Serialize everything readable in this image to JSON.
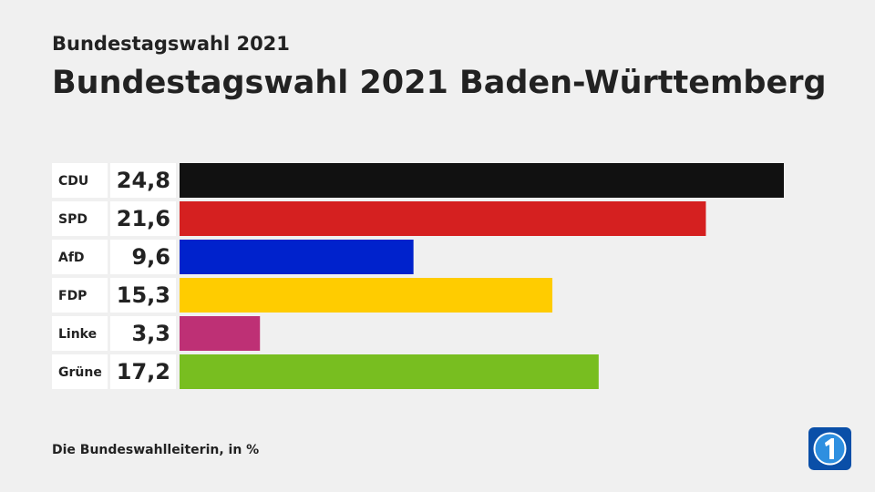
{
  "chart_data": {
    "type": "bar",
    "orientation": "horizontal",
    "subtitle": "Bundestagswahl 2021",
    "title": "Bundestagswahl 2021 Baden-Württemberg",
    "categories": [
      "CDU",
      "SPD",
      "AfD",
      "FDP",
      "Linke",
      "Grüne"
    ],
    "values": [
      24.8,
      21.6,
      9.6,
      15.3,
      3.3,
      17.2
    ],
    "value_labels": [
      "24,8",
      "21,6",
      "9,6",
      "15,3",
      "3,3",
      "17,2"
    ],
    "colors": [
      "#111111",
      "#d52020",
      "#0022cc",
      "#ffcc00",
      "#be3075",
      "#78be20"
    ],
    "source": "Die Bundeswahlleiterin, in %"
  }
}
